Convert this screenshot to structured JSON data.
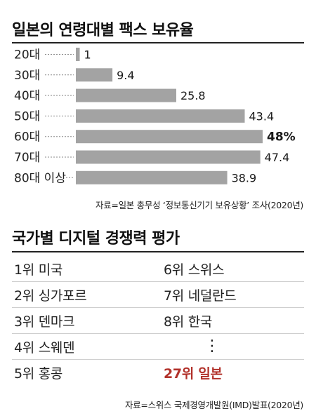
{
  "section1": {
    "title": "일본의 연령대별 팩스 보유율",
    "source": "자료=일본 총무성 ‘정보통신기기 보유상황’ 조사(2020년)"
  },
  "chart_data": {
    "type": "bar",
    "orientation": "horizontal",
    "title": "일본의 연령대별 팩스 보유율",
    "categories": [
      "20대",
      "30대",
      "40대",
      "50대",
      "60대",
      "70대",
      "80대 이상"
    ],
    "values": [
      1,
      9.4,
      25.8,
      43.4,
      48,
      47.4,
      38.9
    ],
    "value_labels": [
      "1",
      "9.4",
      "25.8",
      "43.4",
      "48%",
      "47.4",
      "38.9"
    ],
    "highlight_index": 4,
    "xlim": [
      0,
      48
    ],
    "bar_color": "#a3a3a3",
    "grid": false
  },
  "section2": {
    "title": "국가별 디지털 경쟁력 평가",
    "left_column": [
      "1위 미국",
      "2위 싱가포르",
      "3위 덴마크",
      "4위 스웨덴",
      "5위 홍콩"
    ],
    "right_column": [
      "6위 스위스",
      "7위 네덜란드",
      "8위 한국",
      "⋮",
      "27위 일본"
    ],
    "highlight_color": "#b2322b",
    "source": "자료=스위스 국제경영개발원(IMD)발표(2020년)"
  }
}
